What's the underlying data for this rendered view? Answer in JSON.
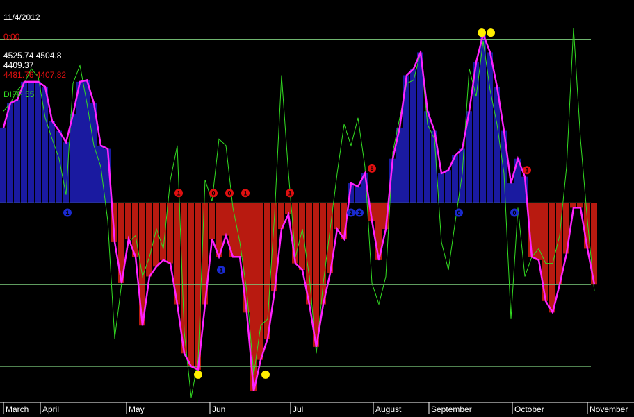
{
  "chart_data": {
    "type": "oscillator",
    "date": "11/4/2012",
    "time": "0:00",
    "readouts": [
      "4525.74  4504.8",
      "4409.37",
      "4481.76  4407.82"
    ],
    "readout_colors": [
      "#ffffff",
      "#ffffff",
      "#e01010"
    ],
    "x": [
      0,
      1,
      2,
      3,
      4,
      5,
      6,
      7,
      8,
      9,
      10,
      11,
      12,
      13,
      14,
      15,
      16,
      17,
      18,
      19,
      20,
      21,
      22,
      23,
      24,
      25,
      26,
      27,
      28,
      29,
      30,
      31,
      32,
      33,
      34,
      35,
      36,
      37,
      38,
      39,
      40,
      41,
      42,
      43,
      44,
      45,
      46,
      47,
      48,
      49,
      50,
      51,
      52,
      53,
      54,
      55,
      56,
      57,
      58,
      59,
      60,
      61,
      62,
      63,
      64,
      65,
      66,
      67,
      68,
      69,
      70,
      71,
      72,
      73,
      74,
      75,
      76,
      77,
      78,
      79,
      80,
      81,
      82,
      83,
      84,
      85
    ],
    "series": [
      {
        "name": "DIFF",
        "label_value": "55",
        "color": "#33dd22",
        "values": [
          56,
          61,
          69,
          73,
          82,
          77,
          52,
          39,
          27,
          5,
          73,
          84,
          61,
          35,
          22,
          -11,
          -83,
          -49,
          -24,
          -20,
          -45,
          -33,
          -16,
          -28,
          14,
          35,
          -79,
          -119,
          -96,
          14,
          1,
          39,
          35,
          -3,
          -24,
          -54,
          -105,
          -75,
          -71,
          -7,
          78,
          18,
          -33,
          -16,
          -45,
          -92,
          -49,
          -16,
          18,
          48,
          35,
          52,
          22,
          -49,
          -62,
          -45,
          31,
          52,
          73,
          75,
          92,
          48,
          39,
          -24,
          -41,
          -11,
          18,
          82,
          65,
          99,
          69,
          48,
          18,
          -71,
          -3,
          -45,
          -33,
          -28,
          -37,
          -37,
          -20,
          22,
          107,
          39,
          -11,
          -54
        ]
      },
      {
        "color": "#ff22ff",
        "positive_color": "#1a1aa0",
        "negative_color": "#b81a10",
        "values": [
          46,
          61,
          63,
          74,
          74,
          74,
          71,
          50,
          44,
          37,
          54,
          74,
          75,
          61,
          35,
          33,
          -24,
          -49,
          -22,
          -33,
          -75,
          -45,
          -39,
          -35,
          -37,
          -62,
          -92,
          -100,
          -102,
          -62,
          -22,
          -33,
          -20,
          -33,
          -33,
          -67,
          -115,
          -96,
          -83,
          -54,
          -16,
          -7,
          -37,
          -41,
          -62,
          -88,
          -62,
          -43,
          -16,
          -22,
          12,
          10,
          18,
          -11,
          -35,
          -16,
          27,
          46,
          78,
          82,
          92,
          56,
          44,
          18,
          20,
          29,
          33,
          56,
          86,
          103,
          92,
          71,
          44,
          12,
          27,
          16,
          -33,
          -35,
          -60,
          -67,
          -50,
          -31,
          -3,
          -3,
          -28,
          -50
        ]
      }
    ],
    "levels": [
      -100,
      -50,
      0,
      50,
      100
    ],
    "level_color": "#7fcf7f",
    "xlim": [
      -0.5,
      90.7
    ],
    "ylim": [
      -122,
      124
    ],
    "xticks": [
      {
        "value": 0,
        "label": "March"
      },
      {
        "value": 5.3,
        "label": "April"
      },
      {
        "value": 17.7,
        "label": "May"
      },
      {
        "value": 29.7,
        "label": "Jun"
      },
      {
        "value": 41.3,
        "label": "Jul"
      },
      {
        "value": 53.2,
        "label": "August"
      },
      {
        "value": 61.2,
        "label": "September"
      },
      {
        "value": 73.2,
        "label": "October"
      },
      {
        "value": 84,
        "label": "November"
      }
    ],
    "signals": [
      {
        "label": "1",
        "x": 25.2,
        "value": 6,
        "color": "#e01010"
      },
      {
        "label": "0",
        "x": 30.2,
        "value": 6,
        "color": "#e01010"
      },
      {
        "label": "0",
        "x": 32.5,
        "value": 6,
        "color": "#e01010"
      },
      {
        "label": "1",
        "x": 34.8,
        "value": 6,
        "color": "#e01010"
      },
      {
        "label": "1",
        "x": 41.2,
        "value": 6,
        "color": "#e01010"
      },
      {
        "label": "5",
        "x": 53,
        "value": 21,
        "color": "#e01010"
      },
      {
        "label": "3",
        "x": 75.3,
        "value": 20,
        "color": "#e01010"
      },
      {
        "label": "1",
        "x": 9.2,
        "value": -6,
        "color": "#1a2ad0"
      },
      {
        "label": "1",
        "x": 31.3,
        "value": -41,
        "color": "#1a2ad0"
      },
      {
        "label": "2",
        "x": 50,
        "value": -6,
        "color": "#1a2ad0"
      },
      {
        "label": "2",
        "x": 51.2,
        "value": -6,
        "color": "#1a2ad0"
      },
      {
        "label": "0",
        "x": 65.5,
        "value": -6,
        "color": "#1a2ad0"
      },
      {
        "label": "0",
        "x": 73.5,
        "value": -6,
        "color": "#1a2ad0"
      }
    ],
    "extremes": [
      {
        "x": 28,
        "value": -105
      },
      {
        "x": 37.7,
        "value": -105
      },
      {
        "x": 68.8,
        "value": 104
      },
      {
        "x": 70.1,
        "value": 104
      }
    ],
    "extreme_color": "#ffee00"
  }
}
